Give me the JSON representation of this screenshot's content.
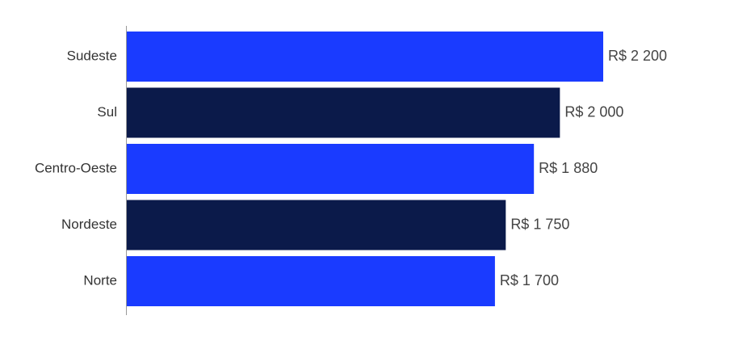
{
  "chart_data": {
    "type": "bar",
    "orientation": "horizontal",
    "categories": [
      "Sudeste",
      "Sul",
      "Centro-Oeste",
      "Nordeste",
      "Norte"
    ],
    "values": [
      2200,
      2000,
      1880,
      1750,
      1700
    ],
    "value_labels": [
      "R$ 2 200",
      "R$ 2 000",
      "R$ 1 880",
      "R$ 1 750",
      "R$ 1 700"
    ],
    "colors": [
      "#1a3bff",
      "#0b1a4a",
      "#1a3bff",
      "#0b1a4a",
      "#1a3bff"
    ],
    "xlim": [
      0,
      2200
    ]
  }
}
